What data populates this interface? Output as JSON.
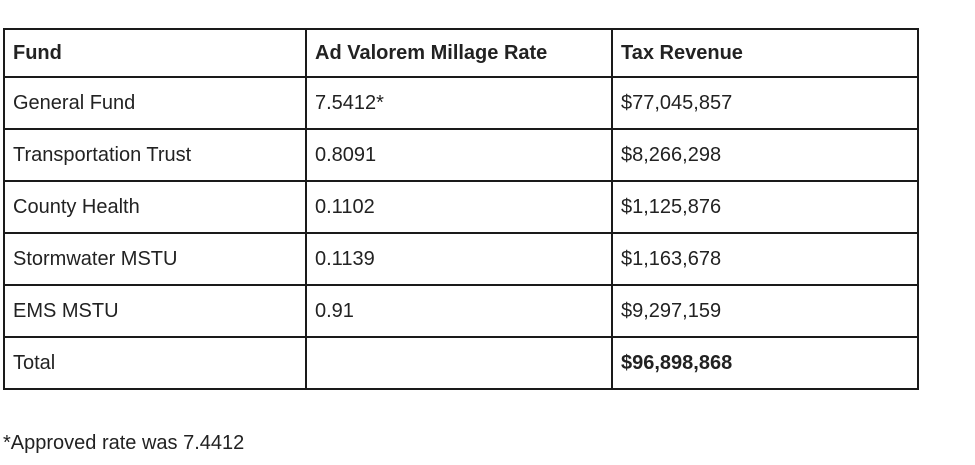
{
  "table": {
    "headers": [
      "Fund",
      "Ad Valorem Millage Rate",
      "Tax Revenue"
    ],
    "rows": [
      {
        "fund": "General Fund",
        "rate": "7.5412*",
        "revenue": "$77,045,857"
      },
      {
        "fund": "Transportation Trust",
        "rate": "0.8091",
        "revenue": "$8,266,298"
      },
      {
        "fund": "County Health",
        "rate": "0.1102",
        "revenue": "$1,125,876"
      },
      {
        "fund": "Stormwater MSTU",
        "rate": "0.1139",
        "revenue": "$1,163,678"
      },
      {
        "fund": "EMS MSTU",
        "rate": "0.91",
        "revenue": "$9,297,159"
      },
      {
        "fund": "Total",
        "rate": "",
        "revenue": "$96,898,868"
      }
    ]
  },
  "footnote": "*Approved rate was 7.4412"
}
